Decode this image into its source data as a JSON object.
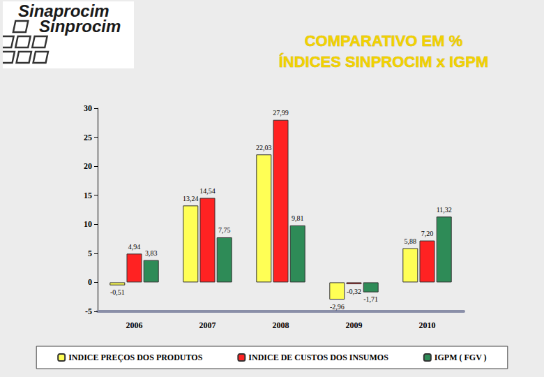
{
  "header": {
    "logo": [
      "Sinaprocim",
      "Sinprocim"
    ]
  },
  "chart_data": {
    "type": "bar",
    "title": "COMPARATIVO EM %\nÍNDICES SINPROCIM x IGPM",
    "categories": [
      "2006",
      "2007",
      "2008",
      "2009",
      "2010"
    ],
    "series": [
      {
        "name": "INDICE PREÇOS DOS PRODUTOS",
        "color": "#ffff55",
        "values": [
          -0.51,
          13.24,
          22.03,
          -2.96,
          5.88
        ],
        "value_labels": [
          "-0,51",
          "13,24",
          "22,03",
          "-2,96",
          "5,88"
        ]
      },
      {
        "name": "INDICE DE CUSTOS DOS INSUMOS",
        "color": "#ff2222",
        "values": [
          4.94,
          14.54,
          27.99,
          -0.32,
          7.2
        ],
        "value_labels": [
          "4,94",
          "14,54",
          "27,99",
          "-0,32",
          "7,20"
        ]
      },
      {
        "name": "IGPM ( FGV )",
        "color": "#2e8b57",
        "values": [
          3.83,
          7.75,
          9.81,
          -1.71,
          11.32
        ],
        "value_labels": [
          "3,83",
          "7,75",
          "9,81",
          "-1,71",
          "11,32"
        ]
      }
    ],
    "ylim": [
      -5,
      30
    ],
    "yticks": [
      -5,
      0,
      5,
      10,
      15,
      20,
      25,
      30
    ],
    "grid": false,
    "legend": "bottom",
    "data_labels": true
  }
}
